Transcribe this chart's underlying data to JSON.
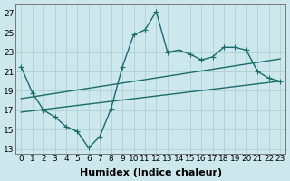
{
  "title": "",
  "xlabel": "Humidex (Indice chaleur)",
  "ylabel": "",
  "bg_color": "#cce8ec",
  "grid_color": "#b0d0d4",
  "line_color": "#1a6b6b",
  "xlim": [
    -0.5,
    23.5
  ],
  "ylim": [
    12.5,
    28.0
  ],
  "xticks": [
    0,
    1,
    2,
    3,
    4,
    5,
    6,
    7,
    8,
    9,
    10,
    11,
    12,
    13,
    14,
    15,
    16,
    17,
    18,
    19,
    20,
    21,
    22,
    23
  ],
  "yticks": [
    13,
    15,
    17,
    19,
    21,
    23,
    25,
    27
  ],
  "line1_x": [
    0,
    1,
    2,
    3,
    4,
    5,
    6,
    7,
    8,
    9,
    10,
    11,
    12,
    13,
    14,
    15,
    16,
    17,
    18,
    19,
    20,
    21,
    22,
    23
  ],
  "line1_y": [
    21.5,
    18.8,
    17.0,
    16.3,
    15.3,
    14.8,
    13.1,
    14.3,
    17.2,
    21.5,
    24.8,
    25.3,
    27.2,
    23.0,
    23.2,
    22.8,
    22.2,
    22.5,
    23.5,
    23.5,
    23.2,
    21.0,
    20.3,
    20.0
  ],
  "line2_x": [
    0,
    23
  ],
  "line2_y": [
    18.2,
    22.3
  ],
  "line3_x": [
    0,
    23
  ],
  "line3_y": [
    16.8,
    20.0
  ],
  "marker": "+",
  "markersize": 4,
  "linewidth": 1.0,
  "xlabel_fontsize": 8,
  "tick_fontsize": 6.5
}
